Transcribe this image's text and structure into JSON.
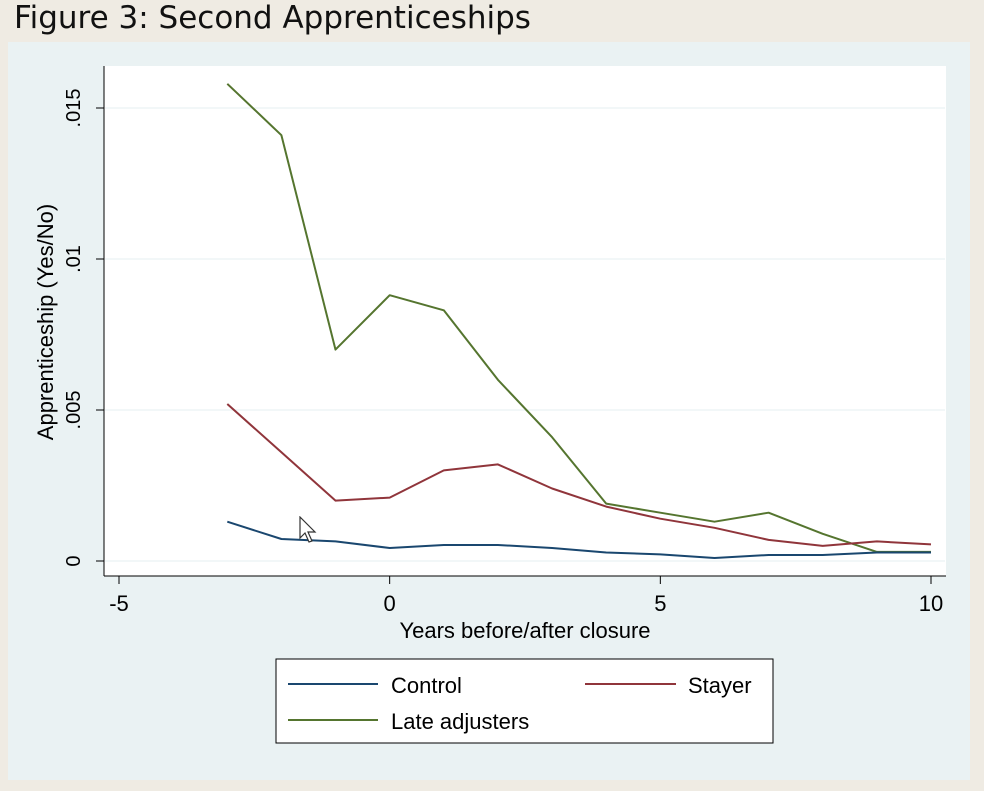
{
  "figure_title": "Figure 3: Second Apprenticeships",
  "colors": {
    "outer_background": "#eaf2f3",
    "plot_background": "#ffffff",
    "gridline": "#eaf2f3",
    "control": "#1a476f",
    "stayer": "#90353b",
    "late_adjusters": "#55752f"
  },
  "chart_data": {
    "type": "line",
    "title": "",
    "xlabel": "Years before/after closure",
    "ylabel": "Apprenticeship (Yes/No)",
    "xlim": [
      -5,
      10
    ],
    "ylim": [
      0,
      0.0165
    ],
    "xticks": [
      -5,
      0,
      5,
      10
    ],
    "xtick_labels": [
      "-5",
      "0",
      "5",
      "10"
    ],
    "yticks": [
      0,
      0.005,
      0.01,
      0.015
    ],
    "ytick_labels": [
      "0",
      ".005",
      ".01",
      ".015"
    ],
    "grid": true,
    "legend_position": "bottom",
    "x": [
      -3,
      -2,
      -1,
      0,
      1,
      2,
      3,
      4,
      5,
      6,
      7,
      8,
      9,
      10
    ],
    "series": [
      {
        "name": "Control",
        "color": "#1a476f",
        "values": [
          0.0013,
          0.00073,
          0.00065,
          0.00043,
          0.00053,
          0.00053,
          0.00043,
          0.00028,
          0.00022,
          0.0001,
          0.0002,
          0.0002,
          0.00028,
          0.00028
        ]
      },
      {
        "name": "Stayer",
        "color": "#90353b",
        "values": [
          0.0052,
          0.0036,
          0.002,
          0.0021,
          0.003,
          0.0032,
          0.0024,
          0.0018,
          0.0014,
          0.0011,
          0.0007,
          0.0005,
          0.00065,
          0.00055
        ]
      },
      {
        "name": "Late adjusters",
        "color": "#55752f",
        "values": [
          0.0158,
          0.0141,
          0.007,
          0.0088,
          0.0083,
          0.006,
          0.0041,
          0.0019,
          0.0016,
          0.0013,
          0.0016,
          0.0009,
          0.0003,
          0.0003
        ]
      }
    ]
  }
}
